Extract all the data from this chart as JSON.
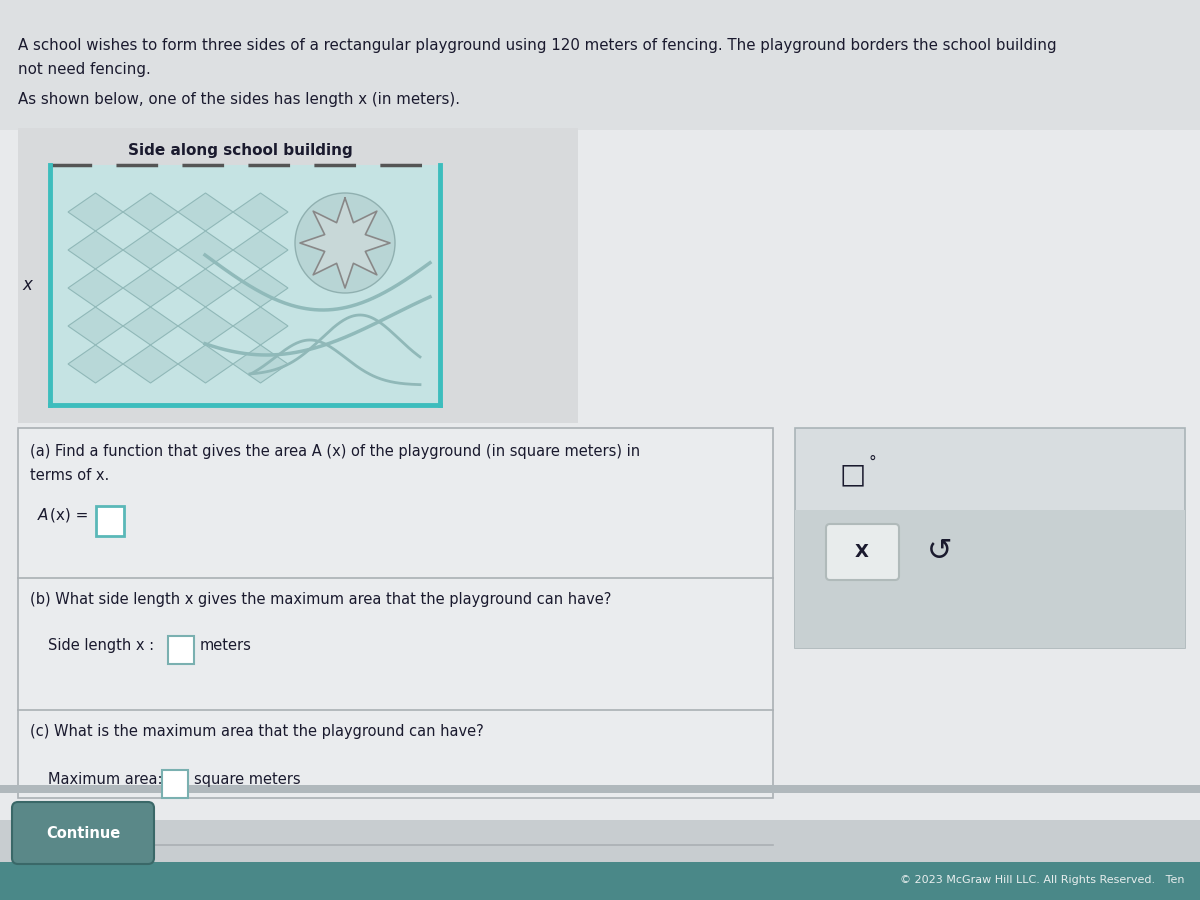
{
  "bg_color": "#c8cdd0",
  "content_bg": "#e8eaec",
  "panel_bg": "#eaecee",
  "right_panel_bg": "#dde2e4",
  "white": "#ffffff",
  "text_color": "#1a1a2e",
  "teal_color": "#3dbdbd",
  "teal_dark": "#2a9898",
  "border_color": "#b8bfc4",
  "continue_bg": "#5a8a8a",
  "bottom_bar_bg": "#5a9090",
  "header1": "A school wishes to form three sides of a rectangular playground using 120 meters of fencing. The playground borders the school building",
  "header2": "not need fencing.",
  "header3": "As shown below, one of the sides has length x (in meters).",
  "diagram_label": "Side along school building",
  "x_label": "x",
  "part_a_line1": "(a) Find a function that gives the area A (x) of the playground (in square meters) in",
  "part_a_line2": "terms of x.",
  "part_a_eq": "A (x) = ",
  "part_b_line1": "(b) What side length x gives the maximum area that the playground can have?",
  "part_b_ans": "Side length x : ",
  "part_b_unit": "meters",
  "part_c_line1": "(c) What is the maximum area that the playground can have?",
  "part_c_ans": "Maximum area: ",
  "part_c_unit": "square meters",
  "continue_text": "Continue",
  "copyright": "© 2023 McGraw Hill LLC. All Rights Reserved.   Ten"
}
